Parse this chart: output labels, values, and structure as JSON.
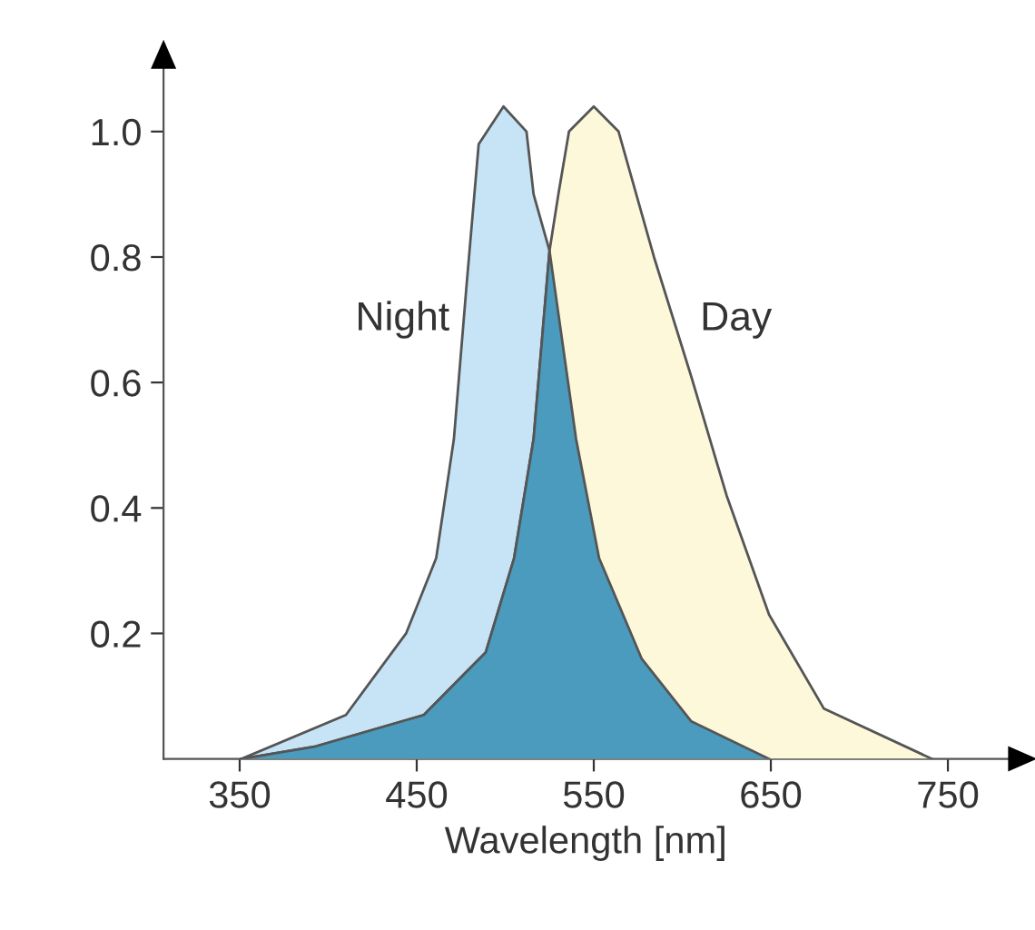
{
  "chart_data": {
    "type": "area",
    "xlabel": "Wavelength [nm]",
    "xlim": [
      307,
      784
    ],
    "ylim": [
      0,
      1.1
    ],
    "xticks": [
      350,
      450,
      550,
      650,
      750
    ],
    "yticks": [
      0.2,
      0.4,
      0.6,
      0.8,
      {
        "value": 1,
        "label": "1.0"
      }
    ],
    "grid": false,
    "legend": false,
    "series": [
      {
        "name": "Night",
        "color": "#c6e4f6",
        "x": [
          351,
          410,
          444,
          461,
          471,
          478,
          485,
          499,
          512,
          516,
          526,
          540,
          553,
          577,
          605,
          649
        ],
        "values": [
          0,
          0.07,
          0.2,
          0.32,
          0.51,
          0.75,
          0.98,
          1.04,
          1.0,
          0.9,
          0.8,
          0.51,
          0.32,
          0.16,
          0.06,
          0
        ]
      },
      {
        "name": "Day",
        "color": "#fdf8da",
        "x": [
          351,
          393,
          454,
          489,
          505,
          516,
          525,
          530,
          536,
          550,
          564,
          584,
          605,
          625,
          649,
          680,
          741
        ],
        "values": [
          0,
          0.02,
          0.07,
          0.17,
          0.32,
          0.51,
          0.81,
          0.9,
          1.0,
          1.04,
          1.0,
          0.8,
          0.61,
          0.42,
          0.23,
          0.08,
          0
        ]
      },
      {
        "color": "#4a9bbd",
        "x": [
          351,
          393,
          454,
          489,
          505,
          516,
          525,
          540,
          553,
          577,
          605,
          649
        ],
        "values": [
          0,
          0.02,
          0.07,
          0.17,
          0.32,
          0.51,
          0.81,
          0.51,
          0.32,
          0.16,
          0.06,
          0
        ]
      }
    ]
  }
}
